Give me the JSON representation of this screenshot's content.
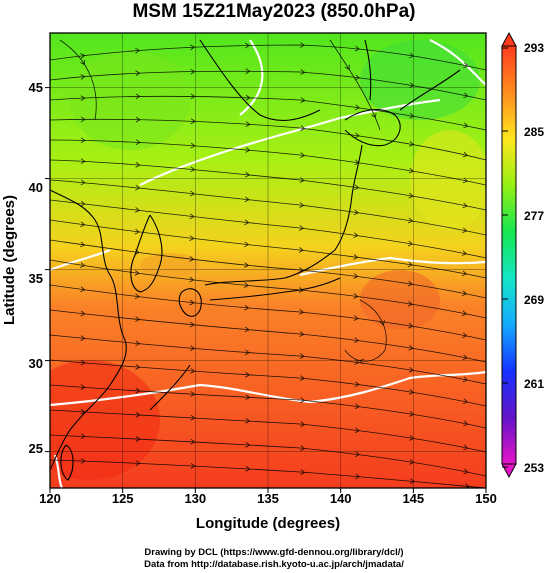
{
  "title": "MSM 15Z21May2023 (850.0hPa)",
  "map": {
    "lon_range": [
      120,
      150
    ],
    "lat_range": [
      23,
      48
    ],
    "lon_ticks": [
      "120",
      "125",
      "130",
      "135",
      "140",
      "145",
      "150"
    ],
    "lat_ticks": [
      "45",
      "40",
      "35",
      "30",
      "25"
    ],
    "xlabel": "Longitude (degrees)",
    "ylabel": "Latitude  (degrees)",
    "field_colors": {
      "north": "#52e61e",
      "north_mid": "#a8f014",
      "middle": "#f5d21e",
      "south_mid": "#fa8228",
      "south": "#f53c1e"
    }
  },
  "colorbar": {
    "labels": [
      "293",
      "285",
      "277",
      "269",
      "261",
      "253"
    ],
    "stops": [
      "#ff3c1e",
      "#ff8c1e",
      "#ffe61e",
      "#96f014",
      "#14e650",
      "#14e6c8",
      "#14aaff",
      "#1432ff",
      "#6414c8",
      "#e614c8"
    ]
  },
  "credits": {
    "line1": "Drawing by DCL (https://www.gfd-dennou.org/library/dcl/)",
    "line2": "Data from http://database.rish.kyoto-u.ac.jp/arch/jmadata/"
  }
}
